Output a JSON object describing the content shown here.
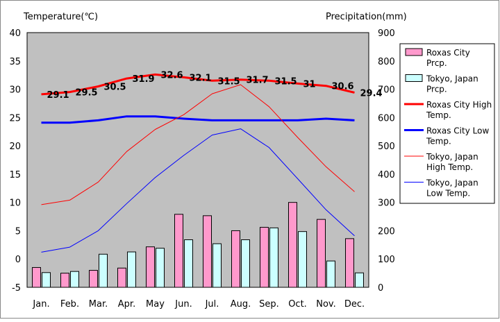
{
  "chart_data": {
    "type": "bar",
    "title": "",
    "ylabel": "Temperature(℃)",
    "y2label": "Precipitation(mm)",
    "ylim": [
      -5,
      40
    ],
    "y2lim": [
      0,
      900
    ],
    "yticks": [
      "-5",
      "0",
      "5",
      "10",
      "15",
      "20",
      "25",
      "30",
      "35",
      "40"
    ],
    "y2ticks": [
      "0",
      "100",
      "200",
      "300",
      "400",
      "500",
      "600",
      "700",
      "800",
      "900"
    ],
    "categories": [
      "Jan.",
      "Feb.",
      "Mar.",
      "Apr.",
      "May",
      "Jun.",
      "Jul.",
      "Aug.",
      "Sep.",
      "Oct.",
      "Nov.",
      "Dec."
    ],
    "grid": false,
    "legend_position": "right",
    "bar_series": [
      {
        "name": "Roxas City Prcp.",
        "color": "#ff99cc",
        "values": [
          70,
          50,
          60,
          68,
          143,
          258,
          253,
          200,
          212,
          300,
          240,
          172
        ]
      },
      {
        "name": "Tokyo, Japan Prcp.",
        "color": "#ccffff",
        "values": [
          52,
          56,
          117,
          125,
          138,
          168,
          154,
          168,
          210,
          197,
          93,
          51
        ]
      }
    ],
    "line_series": [
      {
        "name": "Roxas City High Temp.",
        "color": "#ff0000",
        "width": "thick",
        "values": [
          29.1,
          29.5,
          30.5,
          31.9,
          32.6,
          32.1,
          31.5,
          31.7,
          31.5,
          31.0,
          30.6,
          29.4
        ],
        "labels": [
          "29.1",
          "29.5",
          "30.5",
          "31.9",
          "32.6",
          "32.1",
          "31.5",
          "31.7",
          "31.5",
          "31",
          "30.6",
          "29.4"
        ]
      },
      {
        "name": "Roxas City Low Temp.",
        "color": "#0000ff",
        "width": "thick",
        "values": [
          24.1,
          24.1,
          24.5,
          25.2,
          25.2,
          24.8,
          24.5,
          24.5,
          24.5,
          24.5,
          24.8,
          24.5
        ]
      },
      {
        "name": "Tokyo, Japan High Temp.",
        "color": "#ff0000",
        "width": "thin",
        "values": [
          9.6,
          10.4,
          13.6,
          19.0,
          22.9,
          25.5,
          29.2,
          30.8,
          26.9,
          21.5,
          16.3,
          11.9
        ]
      },
      {
        "name": "Tokyo, Japan Low Temp.",
        "color": "#0000ff",
        "width": "thin",
        "values": [
          1.2,
          2.1,
          5.0,
          9.8,
          14.4,
          18.3,
          21.9,
          23.0,
          19.7,
          14.2,
          8.7,
          4.1
        ]
      }
    ],
    "legend": [
      {
        "label_lines": [
          "Roxas City",
          "Prcp."
        ],
        "kind": "box",
        "color": "#ff99cc"
      },
      {
        "label_lines": [
          "Tokyo, Japan",
          "Prcp."
        ],
        "kind": "box",
        "color": "#ccffff"
      },
      {
        "label_lines": [
          "Roxas City High",
          "Temp."
        ],
        "kind": "line",
        "color": "#ff0000",
        "width": "thick"
      },
      {
        "label_lines": [
          "Roxas City Low",
          "Temp."
        ],
        "kind": "line",
        "color": "#0000ff",
        "width": "thick"
      },
      {
        "label_lines": [
          "Tokyo, Japan",
          "High Temp."
        ],
        "kind": "line",
        "color": "#ff0000",
        "width": "thin"
      },
      {
        "label_lines": [
          "Tokyo, Japan",
          "Low Temp."
        ],
        "kind": "line",
        "color": "#0000ff",
        "width": "thin"
      }
    ],
    "plot_background": "#c0c0c0"
  }
}
